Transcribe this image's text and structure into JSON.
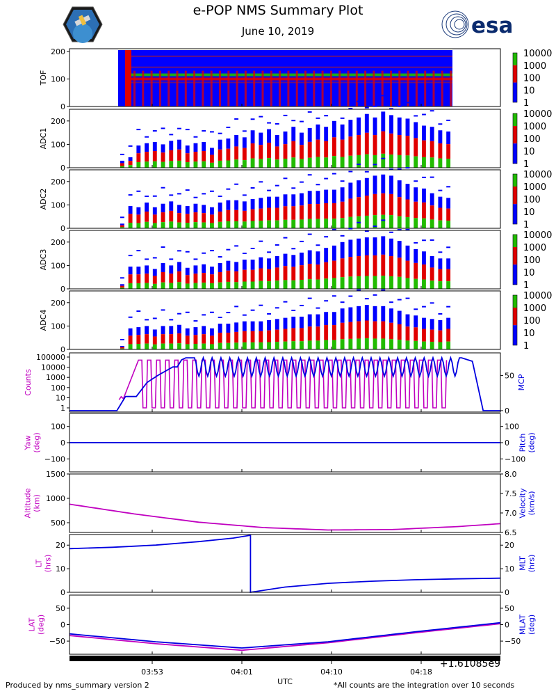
{
  "header": {
    "title": "e-POP NMS Summary Plot",
    "subtitle": "June 10, 2019"
  },
  "footer": {
    "left": "Produced by nms_summary version 2",
    "right": "*All counts are the integration over 10 seconds"
  },
  "logos": {
    "mission": "epop-mission-patch",
    "agency": "esa"
  },
  "colors": {
    "magenta": "#c000c0",
    "blue": "#0000e0",
    "spec_blue": "#0000ff",
    "spec_red": "#e00000",
    "spec_green": "#22bb00"
  },
  "chart_data": [
    {
      "type": "heatmap",
      "id": "tof",
      "ylabel": "TOF",
      "ylim": [
        0,
        210
      ],
      "yticks": [
        "0",
        "100",
        "200"
      ],
      "colorbar": [
        "10000",
        "1000",
        "100",
        "10",
        "1"
      ],
      "bands": [
        100,
        115,
        85,
        140,
        180
      ]
    },
    {
      "type": "heatmap",
      "id": "adc1",
      "ylabel": "ADC1",
      "ylim": [
        0,
        250
      ],
      "yticks": [
        "0",
        "100",
        "200"
      ],
      "colorbar": [
        "10000",
        "1000",
        "100",
        "10",
        "1"
      ],
      "column_tops": [
        30,
        45,
        95,
        105,
        110,
        100,
        115,
        120,
        95,
        105,
        110,
        85,
        120,
        125,
        140,
        130,
        160,
        150,
        165,
        140,
        155,
        175,
        150,
        170,
        185,
        175,
        200,
        185,
        205,
        215,
        230,
        215,
        240,
        225,
        215,
        210,
        195,
        180,
        175,
        160,
        155
      ]
    },
    {
      "type": "heatmap",
      "id": "adc2",
      "ylabel": "ADC2",
      "ylim": [
        0,
        250
      ],
      "yticks": [
        "0",
        "100",
        "200"
      ],
      "colorbar": [
        "10000",
        "1000",
        "100",
        "10",
        "1"
      ],
      "column_tops": [
        20,
        95,
        90,
        110,
        90,
        105,
        115,
        100,
        95,
        105,
        100,
        90,
        110,
        120,
        120,
        115,
        125,
        130,
        135,
        135,
        145,
        145,
        150,
        160,
        160,
        165,
        165,
        175,
        195,
        205,
        215,
        225,
        230,
        225,
        205,
        190,
        175,
        170,
        150,
        135,
        130
      ]
    },
    {
      "type": "heatmap",
      "id": "adc3",
      "ylabel": "ADC3",
      "ylim": [
        0,
        250
      ],
      "yticks": [
        "0",
        "100",
        "200"
      ],
      "colorbar": [
        "10000",
        "1000",
        "100",
        "10",
        "1"
      ],
      "column_tops": [
        20,
        95,
        95,
        100,
        85,
        110,
        100,
        115,
        90,
        100,
        105,
        95,
        110,
        120,
        115,
        125,
        125,
        135,
        130,
        140,
        150,
        145,
        155,
        165,
        160,
        175,
        185,
        200,
        210,
        215,
        220,
        220,
        225,
        215,
        205,
        185,
        170,
        160,
        140,
        130,
        130
      ]
    },
    {
      "type": "heatmap",
      "id": "adc4",
      "ylabel": "ADC4",
      "ylim": [
        0,
        250
      ],
      "yticks": [
        "0",
        "100",
        "200"
      ],
      "colorbar": [
        "10000",
        "1000",
        "100",
        "10",
        "1"
      ],
      "column_tops": [
        15,
        90,
        95,
        100,
        85,
        100,
        100,
        105,
        90,
        95,
        100,
        90,
        110,
        110,
        115,
        120,
        120,
        120,
        125,
        130,
        135,
        140,
        140,
        150,
        150,
        160,
        160,
        175,
        180,
        185,
        190,
        185,
        185,
        175,
        165,
        150,
        145,
        135,
        130,
        125,
        135
      ]
    },
    {
      "type": "line",
      "id": "counts-mcp",
      "ylabel_left": "Counts",
      "ylabel_right": "MCP",
      "yticks_left": [
        "100000",
        "10000",
        "1000",
        "100",
        "10",
        "1"
      ],
      "yticks_right": [
        "50",
        "0"
      ],
      "series": [
        {
          "name": "Counts",
          "color": "#c000c0",
          "scale": "log10",
          "ylim": [
            0,
            5.2
          ],
          "description": "oscillating 1 to 100000 during operation"
        },
        {
          "name": "MCP",
          "color": "#0000e0",
          "ylim": [
            -2,
            82
          ],
          "x": [
            0,
            0.11,
            0.13,
            0.155,
            0.18,
            0.205,
            0.24,
            0.25,
            0.26,
            0.27,
            0.29,
            0.91,
            0.935,
            0.96,
            1.0
          ],
          "y": [
            0,
            0,
            20,
            20,
            40,
            50,
            62,
            62,
            72,
            75,
            75,
            75,
            70,
            0,
            0
          ]
        }
      ]
    },
    {
      "type": "line",
      "id": "yaw-pitch",
      "ylabel_left": "Yaw\n(deg)",
      "ylabel_right": "Pitch\n(deg)",
      "yticks_left": [
        "100",
        "0",
        "−100"
      ],
      "yticks_right": [
        "100",
        "0",
        "−100"
      ],
      "ylim": [
        -180,
        180
      ],
      "series": [
        {
          "name": "Yaw",
          "color": "#c000c0",
          "x": [
            0,
            1
          ],
          "y": [
            0,
            0
          ]
        },
        {
          "name": "Pitch",
          "color": "#0000e0",
          "x": [
            0,
            1
          ],
          "y": [
            0,
            0
          ]
        }
      ]
    },
    {
      "type": "line",
      "id": "alt-vel",
      "ylabel_left": "Altitude\n(km)",
      "ylabel_right": "Velocity\n(km/s)",
      "yticks_left": [
        "1500",
        "1000",
        "500"
      ],
      "yticks_right": [
        "8.0",
        "7.5",
        "7.0",
        "6.5"
      ],
      "ylim_left": [
        300,
        1500
      ],
      "ylim_right": [
        6.5,
        8.0
      ],
      "series": [
        {
          "name": "Altitude",
          "color": "#c000c0",
          "x": [
            0,
            0.15,
            0.3,
            0.45,
            0.6,
            0.75,
            0.9,
            1.0
          ],
          "y": [
            880,
            680,
            510,
            400,
            350,
            360,
            420,
            480
          ]
        }
      ]
    },
    {
      "type": "line",
      "id": "lt-mlt",
      "ylabel_left": "LT\n(hrs)",
      "ylabel_right": "MLT\n(hrs)",
      "yticks_left": [
        "20",
        "10",
        "0"
      ],
      "yticks_right": [
        "20",
        "10",
        "0"
      ],
      "ylim": [
        0,
        24.5
      ],
      "series": [
        {
          "name": "MLT",
          "color": "#0000e0",
          "x": [
            0,
            0.1,
            0.2,
            0.3,
            0.38,
            0.42,
            0.42,
            0.5,
            0.6,
            0.7,
            0.8,
            0.9,
            1.0
          ],
          "y": [
            18.5,
            19.1,
            20.0,
            21.5,
            23.0,
            24.2,
            0,
            2.2,
            3.8,
            4.7,
            5.3,
            5.7,
            6.0
          ]
        }
      ]
    },
    {
      "type": "line",
      "id": "lat-mlat",
      "ylabel_left": "LAT\n(deg)",
      "ylabel_right": "MLAT\n(deg)",
      "yticks_left": [
        "50",
        "0",
        "−50"
      ],
      "yticks_right": [
        "50",
        "0",
        "−50"
      ],
      "ylim": [
        -90,
        90
      ],
      "series": [
        {
          "name": "LAT",
          "color": "#c000c0",
          "x": [
            0,
            0.2,
            0.4,
            0.6,
            0.8,
            1.0
          ],
          "y": [
            -33,
            -58,
            -78,
            -55,
            -25,
            3
          ]
        },
        {
          "name": "MLAT",
          "color": "#0000e0",
          "x": [
            0,
            0.2,
            0.4,
            0.6,
            0.8,
            1.0
          ],
          "y": [
            -28,
            -52,
            -71,
            -52,
            -22,
            6
          ]
        }
      ]
    }
  ],
  "x_axis": {
    "label": "UTC",
    "tick_labels": [
      "03:53",
      "04:01",
      "04:10",
      "04:18"
    ],
    "offset_text": "+1.61085e9"
  }
}
